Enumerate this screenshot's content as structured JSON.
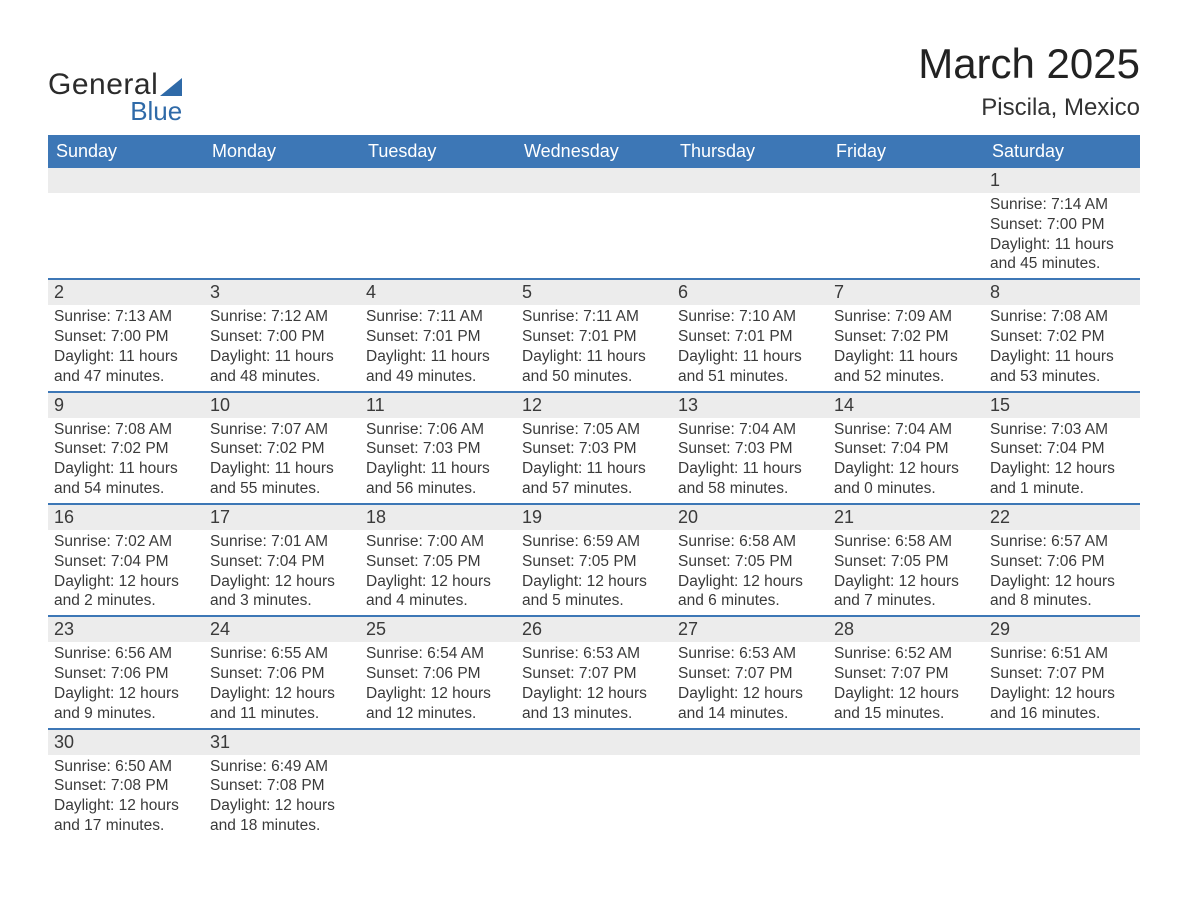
{
  "brand": {
    "word1": "General",
    "word2": "Blue",
    "accent_color": "#2f6aa8"
  },
  "title": "March 2025",
  "location": "Piscila, Mexico",
  "colors": {
    "header_bg": "#3d77b6",
    "header_text": "#ffffff",
    "daynum_bg": "#ececec",
    "row_border": "#3d77b6",
    "body_text": "#3a3a3a",
    "page_bg": "#ffffff"
  },
  "fonts": {
    "title_size_pt": 32,
    "location_size_pt": 18,
    "header_size_pt": 14,
    "cell_size_pt": 12
  },
  "day_headers": [
    "Sunday",
    "Monday",
    "Tuesday",
    "Wednesday",
    "Thursday",
    "Friday",
    "Saturday"
  ],
  "weeks": [
    [
      {
        "n": "",
        "sunrise": "",
        "sunset": "",
        "daylight": ""
      },
      {
        "n": "",
        "sunrise": "",
        "sunset": "",
        "daylight": ""
      },
      {
        "n": "",
        "sunrise": "",
        "sunset": "",
        "daylight": ""
      },
      {
        "n": "",
        "sunrise": "",
        "sunset": "",
        "daylight": ""
      },
      {
        "n": "",
        "sunrise": "",
        "sunset": "",
        "daylight": ""
      },
      {
        "n": "",
        "sunrise": "",
        "sunset": "",
        "daylight": ""
      },
      {
        "n": "1",
        "sunrise": "Sunrise: 7:14 AM",
        "sunset": "Sunset: 7:00 PM",
        "daylight": "Daylight: 11 hours and 45 minutes."
      }
    ],
    [
      {
        "n": "2",
        "sunrise": "Sunrise: 7:13 AM",
        "sunset": "Sunset: 7:00 PM",
        "daylight": "Daylight: 11 hours and 47 minutes."
      },
      {
        "n": "3",
        "sunrise": "Sunrise: 7:12 AM",
        "sunset": "Sunset: 7:00 PM",
        "daylight": "Daylight: 11 hours and 48 minutes."
      },
      {
        "n": "4",
        "sunrise": "Sunrise: 7:11 AM",
        "sunset": "Sunset: 7:01 PM",
        "daylight": "Daylight: 11 hours and 49 minutes."
      },
      {
        "n": "5",
        "sunrise": "Sunrise: 7:11 AM",
        "sunset": "Sunset: 7:01 PM",
        "daylight": "Daylight: 11 hours and 50 minutes."
      },
      {
        "n": "6",
        "sunrise": "Sunrise: 7:10 AM",
        "sunset": "Sunset: 7:01 PM",
        "daylight": "Daylight: 11 hours and 51 minutes."
      },
      {
        "n": "7",
        "sunrise": "Sunrise: 7:09 AM",
        "sunset": "Sunset: 7:02 PM",
        "daylight": "Daylight: 11 hours and 52 minutes."
      },
      {
        "n": "8",
        "sunrise": "Sunrise: 7:08 AM",
        "sunset": "Sunset: 7:02 PM",
        "daylight": "Daylight: 11 hours and 53 minutes."
      }
    ],
    [
      {
        "n": "9",
        "sunrise": "Sunrise: 7:08 AM",
        "sunset": "Sunset: 7:02 PM",
        "daylight": "Daylight: 11 hours and 54 minutes."
      },
      {
        "n": "10",
        "sunrise": "Sunrise: 7:07 AM",
        "sunset": "Sunset: 7:02 PM",
        "daylight": "Daylight: 11 hours and 55 minutes."
      },
      {
        "n": "11",
        "sunrise": "Sunrise: 7:06 AM",
        "sunset": "Sunset: 7:03 PM",
        "daylight": "Daylight: 11 hours and 56 minutes."
      },
      {
        "n": "12",
        "sunrise": "Sunrise: 7:05 AM",
        "sunset": "Sunset: 7:03 PM",
        "daylight": "Daylight: 11 hours and 57 minutes."
      },
      {
        "n": "13",
        "sunrise": "Sunrise: 7:04 AM",
        "sunset": "Sunset: 7:03 PM",
        "daylight": "Daylight: 11 hours and 58 minutes."
      },
      {
        "n": "14",
        "sunrise": "Sunrise: 7:04 AM",
        "sunset": "Sunset: 7:04 PM",
        "daylight": "Daylight: 12 hours and 0 minutes."
      },
      {
        "n": "15",
        "sunrise": "Sunrise: 7:03 AM",
        "sunset": "Sunset: 7:04 PM",
        "daylight": "Daylight: 12 hours and 1 minute."
      }
    ],
    [
      {
        "n": "16",
        "sunrise": "Sunrise: 7:02 AM",
        "sunset": "Sunset: 7:04 PM",
        "daylight": "Daylight: 12 hours and 2 minutes."
      },
      {
        "n": "17",
        "sunrise": "Sunrise: 7:01 AM",
        "sunset": "Sunset: 7:04 PM",
        "daylight": "Daylight: 12 hours and 3 minutes."
      },
      {
        "n": "18",
        "sunrise": "Sunrise: 7:00 AM",
        "sunset": "Sunset: 7:05 PM",
        "daylight": "Daylight: 12 hours and 4 minutes."
      },
      {
        "n": "19",
        "sunrise": "Sunrise: 6:59 AM",
        "sunset": "Sunset: 7:05 PM",
        "daylight": "Daylight: 12 hours and 5 minutes."
      },
      {
        "n": "20",
        "sunrise": "Sunrise: 6:58 AM",
        "sunset": "Sunset: 7:05 PM",
        "daylight": "Daylight: 12 hours and 6 minutes."
      },
      {
        "n": "21",
        "sunrise": "Sunrise: 6:58 AM",
        "sunset": "Sunset: 7:05 PM",
        "daylight": "Daylight: 12 hours and 7 minutes."
      },
      {
        "n": "22",
        "sunrise": "Sunrise: 6:57 AM",
        "sunset": "Sunset: 7:06 PM",
        "daylight": "Daylight: 12 hours and 8 minutes."
      }
    ],
    [
      {
        "n": "23",
        "sunrise": "Sunrise: 6:56 AM",
        "sunset": "Sunset: 7:06 PM",
        "daylight": "Daylight: 12 hours and 9 minutes."
      },
      {
        "n": "24",
        "sunrise": "Sunrise: 6:55 AM",
        "sunset": "Sunset: 7:06 PM",
        "daylight": "Daylight: 12 hours and 11 minutes."
      },
      {
        "n": "25",
        "sunrise": "Sunrise: 6:54 AM",
        "sunset": "Sunset: 7:06 PM",
        "daylight": "Daylight: 12 hours and 12 minutes."
      },
      {
        "n": "26",
        "sunrise": "Sunrise: 6:53 AM",
        "sunset": "Sunset: 7:07 PM",
        "daylight": "Daylight: 12 hours and 13 minutes."
      },
      {
        "n": "27",
        "sunrise": "Sunrise: 6:53 AM",
        "sunset": "Sunset: 7:07 PM",
        "daylight": "Daylight: 12 hours and 14 minutes."
      },
      {
        "n": "28",
        "sunrise": "Sunrise: 6:52 AM",
        "sunset": "Sunset: 7:07 PM",
        "daylight": "Daylight: 12 hours and 15 minutes."
      },
      {
        "n": "29",
        "sunrise": "Sunrise: 6:51 AM",
        "sunset": "Sunset: 7:07 PM",
        "daylight": "Daylight: 12 hours and 16 minutes."
      }
    ],
    [
      {
        "n": "30",
        "sunrise": "Sunrise: 6:50 AM",
        "sunset": "Sunset: 7:08 PM",
        "daylight": "Daylight: 12 hours and 17 minutes."
      },
      {
        "n": "31",
        "sunrise": "Sunrise: 6:49 AM",
        "sunset": "Sunset: 7:08 PM",
        "daylight": "Daylight: 12 hours and 18 minutes."
      },
      {
        "n": "",
        "sunrise": "",
        "sunset": "",
        "daylight": ""
      },
      {
        "n": "",
        "sunrise": "",
        "sunset": "",
        "daylight": ""
      },
      {
        "n": "",
        "sunrise": "",
        "sunset": "",
        "daylight": ""
      },
      {
        "n": "",
        "sunrise": "",
        "sunset": "",
        "daylight": ""
      },
      {
        "n": "",
        "sunrise": "",
        "sunset": "",
        "daylight": ""
      }
    ]
  ]
}
